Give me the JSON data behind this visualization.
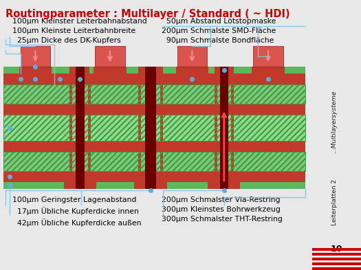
{
  "title": "Routingparameter : Multilayer / Standard ( ~ HDI)",
  "title_color": "#cc0000",
  "bg_color": "#e8e8e8",
  "main_bg": "#ffffff",
  "top_left_text": "100µm Kleinster Leiterbahnabstand\n100µm Kleinste Leiterbahnbreite\n  25µm Dicke des DK-Kupfers",
  "top_right_text": "  50µm Abstand Lötstopmaske\n200µm Schmalste SMD-Fläche\n  90µm Schmalste Bondfläche",
  "bot_left_text": "100µm Geringster Lagenabstand\n  17µm Übliche Kupferdicke innen\n  42µm Übliche Kupferdicke außen",
  "bot_right_text": "200µm Schmalster Via-Restring\n300µm Kleinstes Bohrwerkzeug\n300µm Schmalster THT-Restring",
  "side_text_top": "...Multilayersysteme",
  "side_text_bot": "Leiterplatten 2",
  "page_num": "10",
  "G_mask": "#5cb85c",
  "G_inner": "#7dc87d",
  "G_core": "#90d890",
  "R_copper": "#c0392b",
  "R_comp": "#d9534f",
  "line_color": "#85c1e9",
  "dot_color": "#5dade2"
}
